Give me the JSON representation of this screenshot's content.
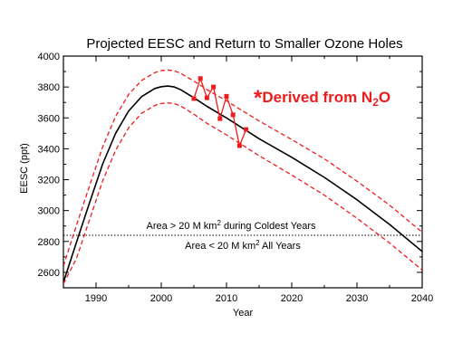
{
  "chart_data": {
    "type": "line",
    "title": "Projected EESC and Return to Smaller Ozone Holes",
    "xlabel": "Year",
    "ylabel": "EESC (ppt)",
    "xlim": [
      1985,
      2040
    ],
    "ylim": [
      2500,
      4000
    ],
    "xticks": [
      1990,
      2000,
      2010,
      2020,
      2030,
      2040
    ],
    "yticks": [
      2600,
      2800,
      3000,
      3200,
      3400,
      3600,
      3800,
      4000
    ],
    "grid": false,
    "series": [
      {
        "role": "central",
        "style": "solid",
        "color": "#000000",
        "x": [
          1985,
          1987,
          1989,
          1991,
          1993,
          1995,
          1997,
          1999,
          2000,
          2001,
          2002,
          2003,
          2005,
          2007,
          2010,
          2015,
          2020,
          2025,
          2030,
          2035,
          2040
        ],
        "y": [
          2535,
          2795,
          3050,
          3300,
          3500,
          3645,
          3738,
          3790,
          3802,
          3806,
          3800,
          3782,
          3730,
          3675,
          3600,
          3465,
          3345,
          3215,
          3070,
          2910,
          2735
        ]
      },
      {
        "role": "upper-bound",
        "style": "dashed",
        "color": "#ee1c1c",
        "x": [
          1985,
          1987,
          1989,
          1991,
          1993,
          1995,
          1997,
          1999,
          2000,
          2001,
          2002,
          2003,
          2005,
          2007,
          2010,
          2015,
          2020,
          2025,
          2030,
          2035,
          2040
        ],
        "y": [
          2640,
          2905,
          3160,
          3410,
          3610,
          3752,
          3843,
          3893,
          3906,
          3910,
          3905,
          3888,
          3838,
          3783,
          3710,
          3580,
          3460,
          3335,
          3190,
          3035,
          2860
        ]
      },
      {
        "role": "lower-bound",
        "style": "dashed",
        "color": "#ee1c1c",
        "x": [
          1985,
          1987,
          1989,
          1991,
          1993,
          1995,
          1997,
          1999,
          2000,
          2001,
          2002,
          2003,
          2005,
          2007,
          2010,
          2015,
          2020,
          2025,
          2030,
          2035,
          2040
        ],
        "y": [
          2525,
          2690,
          2940,
          3190,
          3390,
          3536,
          3630,
          3680,
          3693,
          3697,
          3692,
          3677,
          3624,
          3565,
          3490,
          3355,
          3230,
          3100,
          2950,
          2790,
          2615
        ]
      },
      {
        "role": "derived-from-n2o",
        "style": "solid-markers",
        "color": "#ee1c1c",
        "x": [
          2005,
          2006,
          2007,
          2008,
          2009,
          2010,
          2011,
          2012,
          2013
        ],
        "y": [
          3725,
          3855,
          3730,
          3800,
          3595,
          3740,
          3620,
          3420,
          3525
        ]
      }
    ],
    "reference_line": {
      "y": 2840,
      "style": "dotted",
      "color": "#000000"
    },
    "annotations": {
      "above_prefix": "Area > 20 M km",
      "above_sup": "2",
      "above_suffix": " during Coldest Years",
      "below_prefix": "Area < 20 M km",
      "below_sup": "2",
      "below_suffix": " All Years",
      "derived_star": "*",
      "derived_prefix": "Derived from N",
      "derived_sub": "2",
      "derived_suffix": "O"
    }
  }
}
